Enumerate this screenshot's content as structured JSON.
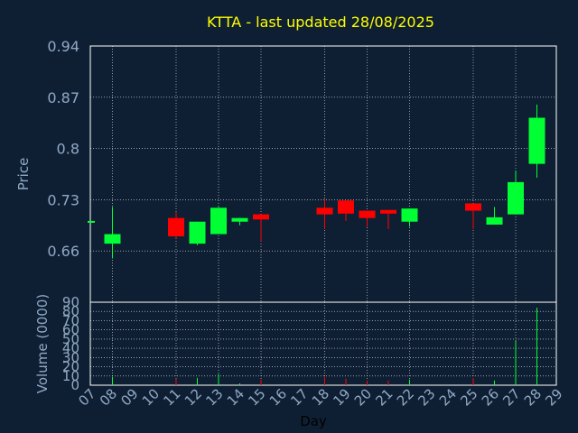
{
  "chart_data": {
    "type": "candlestick",
    "title": "KTTA - last updated 28/08/2025",
    "ylabel": "Price",
    "volume_label": "Volume (0000)",
    "xlabel": "Day",
    "ylim": [
      0.59,
      0.94
    ],
    "yticks": [
      "0.94",
      "0.87",
      "0.8",
      "0.73",
      "0.66"
    ],
    "ytick_values": [
      0.94,
      0.87,
      0.8,
      0.73,
      0.66
    ],
    "volume_ylim": [
      0,
      90
    ],
    "volume_ticks": [
      "90",
      "80",
      "70",
      "60",
      "50",
      "40",
      "30",
      "20",
      "10",
      "0"
    ],
    "volume_tick_values": [
      90,
      80,
      70,
      60,
      50,
      40,
      30,
      20,
      10,
      0
    ],
    "x_ticks": [
      "07",
      "08",
      "09",
      "10",
      "11",
      "12",
      "13",
      "14",
      "15",
      "16",
      "17",
      "18",
      "19",
      "20",
      "21",
      "22",
      "23",
      "24",
      "25",
      "26",
      "27",
      "28",
      "29"
    ],
    "up_color": "#00ff33",
    "down_color": "#ff0000",
    "candles": [
      {
        "day": "07",
        "open": 0.7,
        "close": 0.701,
        "high": 0.701,
        "low": 0.7,
        "volume": 0
      },
      {
        "day": "08",
        "open": 0.67,
        "close": 0.683,
        "high": 0.72,
        "low": 0.65,
        "volume": 9
      },
      {
        "day": "11",
        "open": 0.705,
        "close": 0.68,
        "high": 0.713,
        "low": 0.677,
        "volume": 7
      },
      {
        "day": "12",
        "open": 0.67,
        "close": 0.7,
        "high": 0.7,
        "low": 0.668,
        "volume": 8
      },
      {
        "day": "13",
        "open": 0.683,
        "close": 0.719,
        "high": 0.72,
        "low": 0.683,
        "volume": 12
      },
      {
        "day": "14",
        "open": 0.7,
        "close": 0.705,
        "high": 0.705,
        "low": 0.695,
        "volume": 2
      },
      {
        "day": "15",
        "open": 0.71,
        "close": 0.703,
        "high": 0.71,
        "low": 0.673,
        "volume": 6
      },
      {
        "day": "18",
        "open": 0.719,
        "close": 0.71,
        "high": 0.731,
        "low": 0.69,
        "volume": 9
      },
      {
        "day": "19",
        "open": 0.729,
        "close": 0.711,
        "high": 0.729,
        "low": 0.701,
        "volume": 7
      },
      {
        "day": "20",
        "open": 0.715,
        "close": 0.705,
        "high": 0.715,
        "low": 0.693,
        "volume": 5
      },
      {
        "day": "21",
        "open": 0.716,
        "close": 0.711,
        "high": 0.716,
        "low": 0.69,
        "volume": 5
      },
      {
        "day": "22",
        "open": 0.7,
        "close": 0.718,
        "high": 0.718,
        "low": 0.693,
        "volume": 6
      },
      {
        "day": "25",
        "open": 0.725,
        "close": 0.715,
        "high": 0.725,
        "low": 0.69,
        "volume": 8
      },
      {
        "day": "26",
        "open": 0.696,
        "close": 0.706,
        "high": 0.72,
        "low": 0.696,
        "volume": 5
      },
      {
        "day": "27",
        "open": 0.71,
        "close": 0.754,
        "high": 0.77,
        "low": 0.71,
        "volume": 48
      },
      {
        "day": "28",
        "open": 0.779,
        "close": 0.842,
        "high": 0.86,
        "low": 0.76,
        "volume": 84
      }
    ]
  }
}
